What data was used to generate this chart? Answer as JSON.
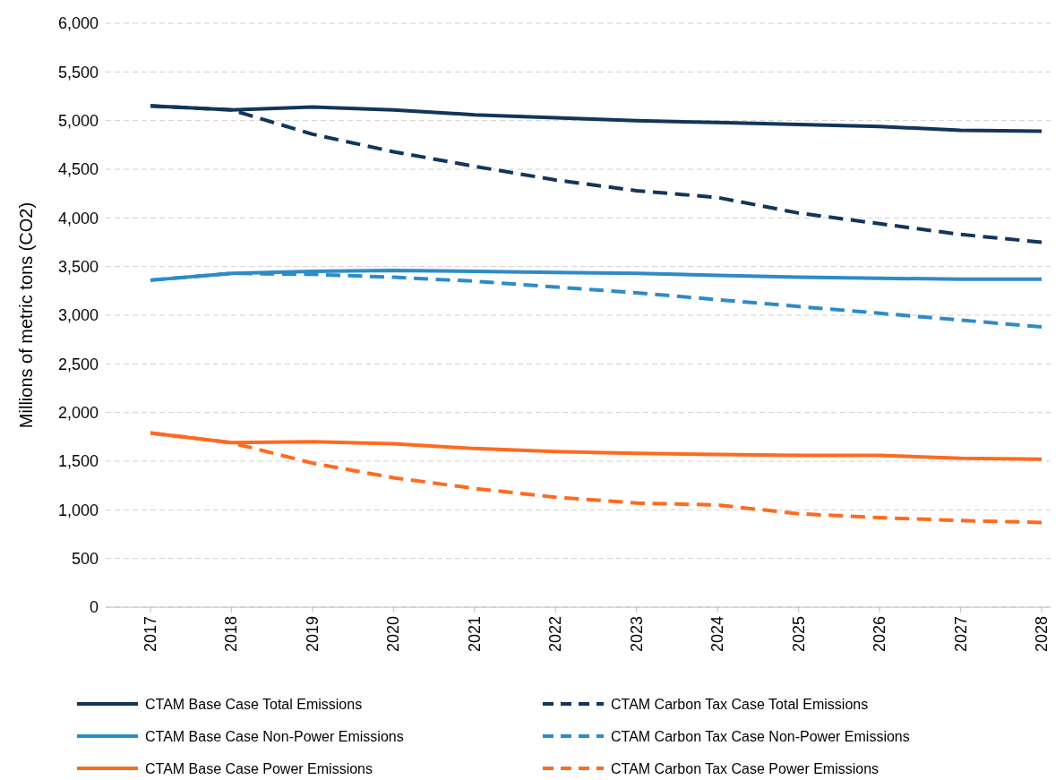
{
  "chart_data": {
    "type": "line",
    "ylabel": "Millions of metric tons (CO2)",
    "categories": [
      "2017",
      "2018",
      "2019",
      "2020",
      "2021",
      "2022",
      "2023",
      "2024",
      "2025",
      "2026",
      "2027",
      "2028"
    ],
    "ylim": [
      0,
      6000
    ],
    "yticks": [
      0,
      {
        "value": 500,
        "label": "500"
      },
      {
        "value": 1000,
        "label": "1,000"
      },
      {
        "value": 1500,
        "label": "1,500"
      },
      {
        "value": 2000,
        "label": "2,000"
      },
      {
        "value": 2500,
        "label": "2,500"
      },
      {
        "value": 3000,
        "label": "3,000"
      },
      {
        "value": 3500,
        "label": "3,500"
      },
      {
        "value": 4000,
        "label": "4,000"
      },
      {
        "value": 4500,
        "label": "4,500"
      },
      {
        "value": 5000,
        "label": "5,000"
      },
      {
        "value": 5500,
        "label": "5,500"
      },
      {
        "value": 6000,
        "label": "6,000"
      }
    ],
    "grid": "y",
    "legend": "bottom",
    "series": [
      {
        "name": "CTAM Base Case Total Emissions",
        "color": "#12355b",
        "line_style": "solid",
        "values": [
          5150,
          5110,
          5140,
          5110,
          5060,
          5030,
          5000,
          4980,
          4960,
          4940,
          4900,
          4890
        ]
      },
      {
        "name": "CTAM Carbon Tax Case Total Emissions",
        "color": "#12355b",
        "line_style": "dashed",
        "values": [
          5150,
          5110,
          4860,
          4680,
          4530,
          4390,
          4280,
          4210,
          4050,
          3940,
          3830,
          3750
        ]
      },
      {
        "name": "CTAM Base Case Non-Power Emissions",
        "color": "#2e8bc8",
        "line_style": "solid",
        "values": [
          3360,
          3430,
          3450,
          3460,
          3450,
          3440,
          3430,
          3410,
          3390,
          3380,
          3370,
          3370
        ]
      },
      {
        "name": "CTAM Carbon Tax Case Non-Power Emissions",
        "color": "#2e8bc8",
        "line_style": "dashed",
        "values": [
          3360,
          3430,
          3420,
          3390,
          3350,
          3290,
          3230,
          3160,
          3090,
          3020,
          2950,
          2880
        ]
      },
      {
        "name": "CTAM Base Case Power Emissions",
        "color": "#ff6a1f",
        "line_style": "solid",
        "values": [
          1790,
          1690,
          1700,
          1680,
          1630,
          1600,
          1580,
          1570,
          1560,
          1560,
          1530,
          1520
        ]
      },
      {
        "name": "CTAM Carbon Tax Case Power Emissions",
        "color": "#ff6a1f",
        "line_style": "dashed",
        "values": [
          1790,
          1690,
          1480,
          1330,
          1220,
          1130,
          1070,
          1050,
          960,
          920,
          890,
          870
        ]
      }
    ]
  }
}
